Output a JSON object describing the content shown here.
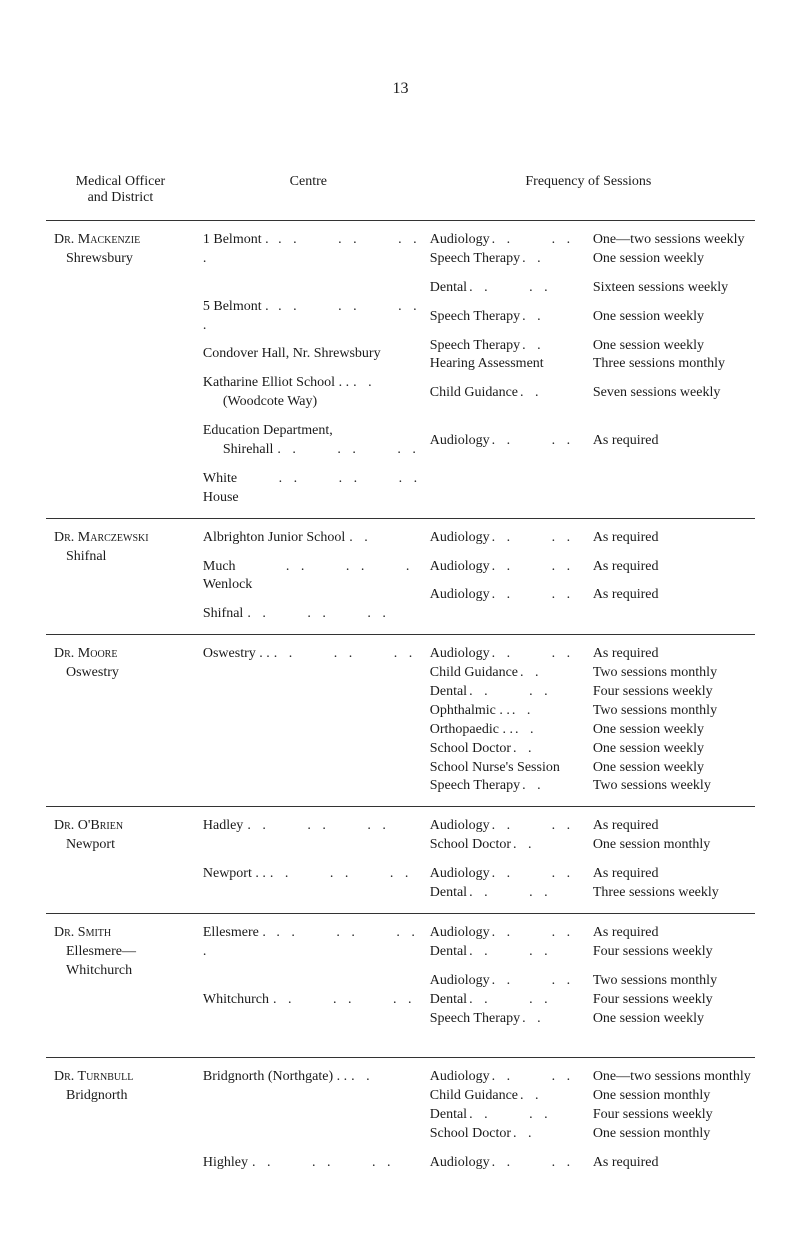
{
  "page_number": "13",
  "headers": {
    "col1_line1": "Medical Officer",
    "col1_line2": "and District",
    "col2": "Centre",
    "col34": "Frequency of Sessions"
  },
  "sections": [
    {
      "officer": "Dr. Mackenzie",
      "district": "Shrewsbury",
      "rows": [
        {
          "centre": "1 Belmont . .",
          "dots": ". .     . .     . .",
          "freq": [
            {
              "s": "Audiology",
              "d": ". .     . .",
              "v": "One—two sessions weekly"
            },
            {
              "s": "Speech Therapy",
              "d": ". .",
              "v": "One session weekly"
            }
          ]
        },
        {
          "centre": "5 Belmont . .",
          "dots": ". .     . .     . .",
          "freq": [
            {
              "s": "Dental",
              "d": ". .     . .",
              "v": "Sixteen sessions weekly"
            }
          ]
        },
        {
          "centre": "Condover Hall, Nr. Shrewsbury",
          "dots": "",
          "freq": [
            {
              "s": "Speech Therapy",
              "d": ". .",
              "v": "One session weekly"
            }
          ]
        },
        {
          "centre": "Katharine Elliot School . .",
          "centre2": "(Woodcote Way)",
          "dots": ". .",
          "freq": [
            {
              "s": "Speech Therapy",
              "d": ". .",
              "v": "One session weekly"
            },
            {
              "s": "Hearing Assessment",
              "d": "",
              "v": "Three sessions monthly"
            }
          ]
        },
        {
          "centre": "Education Department,",
          "centre2": "Shirehall",
          "dots2": ". .     . .     . .",
          "freq": [
            {
              "s": "Child Guidance",
              "d": ". .",
              "v": "Seven sessions weekly"
            }
          ]
        },
        {
          "centre": "White House",
          "dots": ". .     . .     . .",
          "freq": [
            {
              "s": "Audiology",
              "d": ". .     . .",
              "v": "As required"
            }
          ]
        }
      ]
    },
    {
      "officer": "Dr. Marczewski",
      "district": "Shifnal",
      "rows": [
        {
          "centre": "Albrighton Junior School",
          "dots": ". .",
          "freq": [
            {
              "s": "Audiology",
              "d": ". .     . .",
              "v": "As required"
            }
          ]
        },
        {
          "centre": "Much Wenlock",
          "dots": ". .     . .     . .",
          "freq": [
            {
              "s": "Audiology",
              "d": ". .     . .",
              "v": "As required"
            }
          ]
        },
        {
          "centre": "Shifnal",
          "dots": ". .     . .     . .     . .",
          "freq": [
            {
              "s": "Audiology",
              "d": ". .     . .",
              "v": "As required"
            }
          ]
        }
      ]
    },
    {
      "officer": "Dr. Moore",
      "district": "Oswestry",
      "rows": [
        {
          "centre": "Oswestry   . .",
          "dots": ". .     . .     . .",
          "freq": [
            {
              "s": "Audiology",
              "d": ". .     . .",
              "v": "As required"
            },
            {
              "s": "Child Guidance",
              "d": ". .",
              "v": "Two sessions monthly"
            },
            {
              "s": "Dental",
              "d": ". .     . .",
              "v": "Four sessions weekly"
            },
            {
              "s": "Ophthalmic   . .",
              "d": ". .",
              "v": "Two sessions monthly"
            },
            {
              "s": "Orthopaedic . .",
              "d": ". .",
              "v": "One session weekly"
            },
            {
              "s": "School Doctor",
              "d": ". .",
              "v": "One session weekly"
            },
            {
              "s": "School Nurse's Session",
              "d": "",
              "v": "One session weekly"
            },
            {
              "s": "Speech Therapy",
              "d": ". .",
              "v": "Two sessions weekly"
            }
          ]
        }
      ]
    },
    {
      "officer": "Dr. O'Brien",
      "district": "Newport",
      "rows": [
        {
          "centre": "Hadley",
          "dots": ". .     . .     . .     . .",
          "freq": [
            {
              "s": "Audiology",
              "d": ". .     . .",
              "v": "As required"
            },
            {
              "s": "School Doctor",
              "d": ". .",
              "v": "One session monthly"
            }
          ]
        },
        {
          "centre": "Newport   . .",
          "dots": ". .     . .     . .",
          "freq": [
            {
              "s": "Audiology",
              "d": ". .     . .",
              "v": "As required"
            },
            {
              "s": "Dental",
              "d": ". .     . .",
              "v": "Three sessions weekly"
            }
          ]
        }
      ]
    },
    {
      "officer": "Dr. Smith",
      "district": "Ellesmere—",
      "district2": "Whitchurch",
      "rows": [
        {
          "centre": "Ellesmere   . .",
          "dots": ". .     . .     . .",
          "freq": [
            {
              "s": "Audiology",
              "d": ". .     . .",
              "v": "As required"
            },
            {
              "s": "Dental",
              "d": ". .     . .",
              "v": "Four sessions weekly"
            }
          ]
        },
        {
          "centre": "Whitchurch",
          "dots": ". .     . .     . .",
          "freq": [
            {
              "s": "Audiology",
              "d": ". .     . .",
              "v": "Two sessions monthly"
            },
            {
              "s": "Dental",
              "d": ". .     . .",
              "v": "Four sessions weekly"
            },
            {
              "s": "Speech Therapy",
              "d": ". .",
              "v": "One session weekly"
            }
          ]
        }
      ]
    },
    {
      "officer": "Dr. Turnbull",
      "district": "Bridgnorth",
      "rows": [
        {
          "centre": "Bridgnorth (Northgate) . .",
          "dots": ". .",
          "freq": [
            {
              "s": "Audiology",
              "d": ". .     . .",
              "v": "One—two sessions monthly"
            },
            {
              "s": "Child Guidance",
              "d": ". .",
              "v": "One session monthly"
            },
            {
              "s": "Dental",
              "d": ". .     . .",
              "v": "Four sessions weekly"
            },
            {
              "s": "School Doctor",
              "d": ". .",
              "v": "One session monthly"
            }
          ]
        },
        {
          "centre": "Highley",
          "dots": ". .     . .     . .     . .",
          "freq": [
            {
              "s": "Audiology",
              "d": ". .     . .",
              "v": "As required"
            }
          ]
        }
      ]
    }
  ]
}
